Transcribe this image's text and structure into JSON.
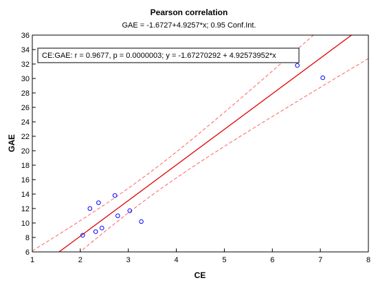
{
  "chart_data": {
    "type": "scatter",
    "title": "Pearson correlation",
    "subtitle": "GAE = -1.6727+4.9257*x; 0.95 Conf.Int.",
    "xlabel": "CE",
    "ylabel": "GAE",
    "xlim": [
      1,
      8
    ],
    "ylim": [
      6,
      36
    ],
    "x_ticks": [
      "1",
      "2",
      "3",
      "4",
      "5",
      "6",
      "7",
      "8"
    ],
    "y_ticks": [
      "6",
      "8",
      "10",
      "12",
      "14",
      "16",
      "18",
      "20",
      "22",
      "24",
      "26",
      "28",
      "30",
      "32",
      "34",
      "36"
    ],
    "grid": false,
    "annotation": "CE:GAE:  r = 0.9677, p = 0.0000003;  y = -1.67270292 + 4.92573952*x",
    "regression": {
      "intercept": -1.6727,
      "slope": 4.9257
    },
    "confidence_level": 0.95,
    "points": [
      {
        "x": 2.05,
        "y": 8.3
      },
      {
        "x": 2.2,
        "y": 12.0
      },
      {
        "x": 2.32,
        "y": 8.8
      },
      {
        "x": 2.38,
        "y": 12.8
      },
      {
        "x": 2.45,
        "y": 9.3
      },
      {
        "x": 2.72,
        "y": 13.8
      },
      {
        "x": 2.78,
        "y": 11.0
      },
      {
        "x": 3.03,
        "y": 11.7
      },
      {
        "x": 3.27,
        "y": 10.2
      },
      {
        "x": 6.52,
        "y": 31.8
      },
      {
        "x": 7.05,
        "y": 30.1
      }
    ],
    "colors": {
      "points": "#0000ff",
      "regression": "#e00000",
      "confidence": "#ff6060"
    }
  }
}
